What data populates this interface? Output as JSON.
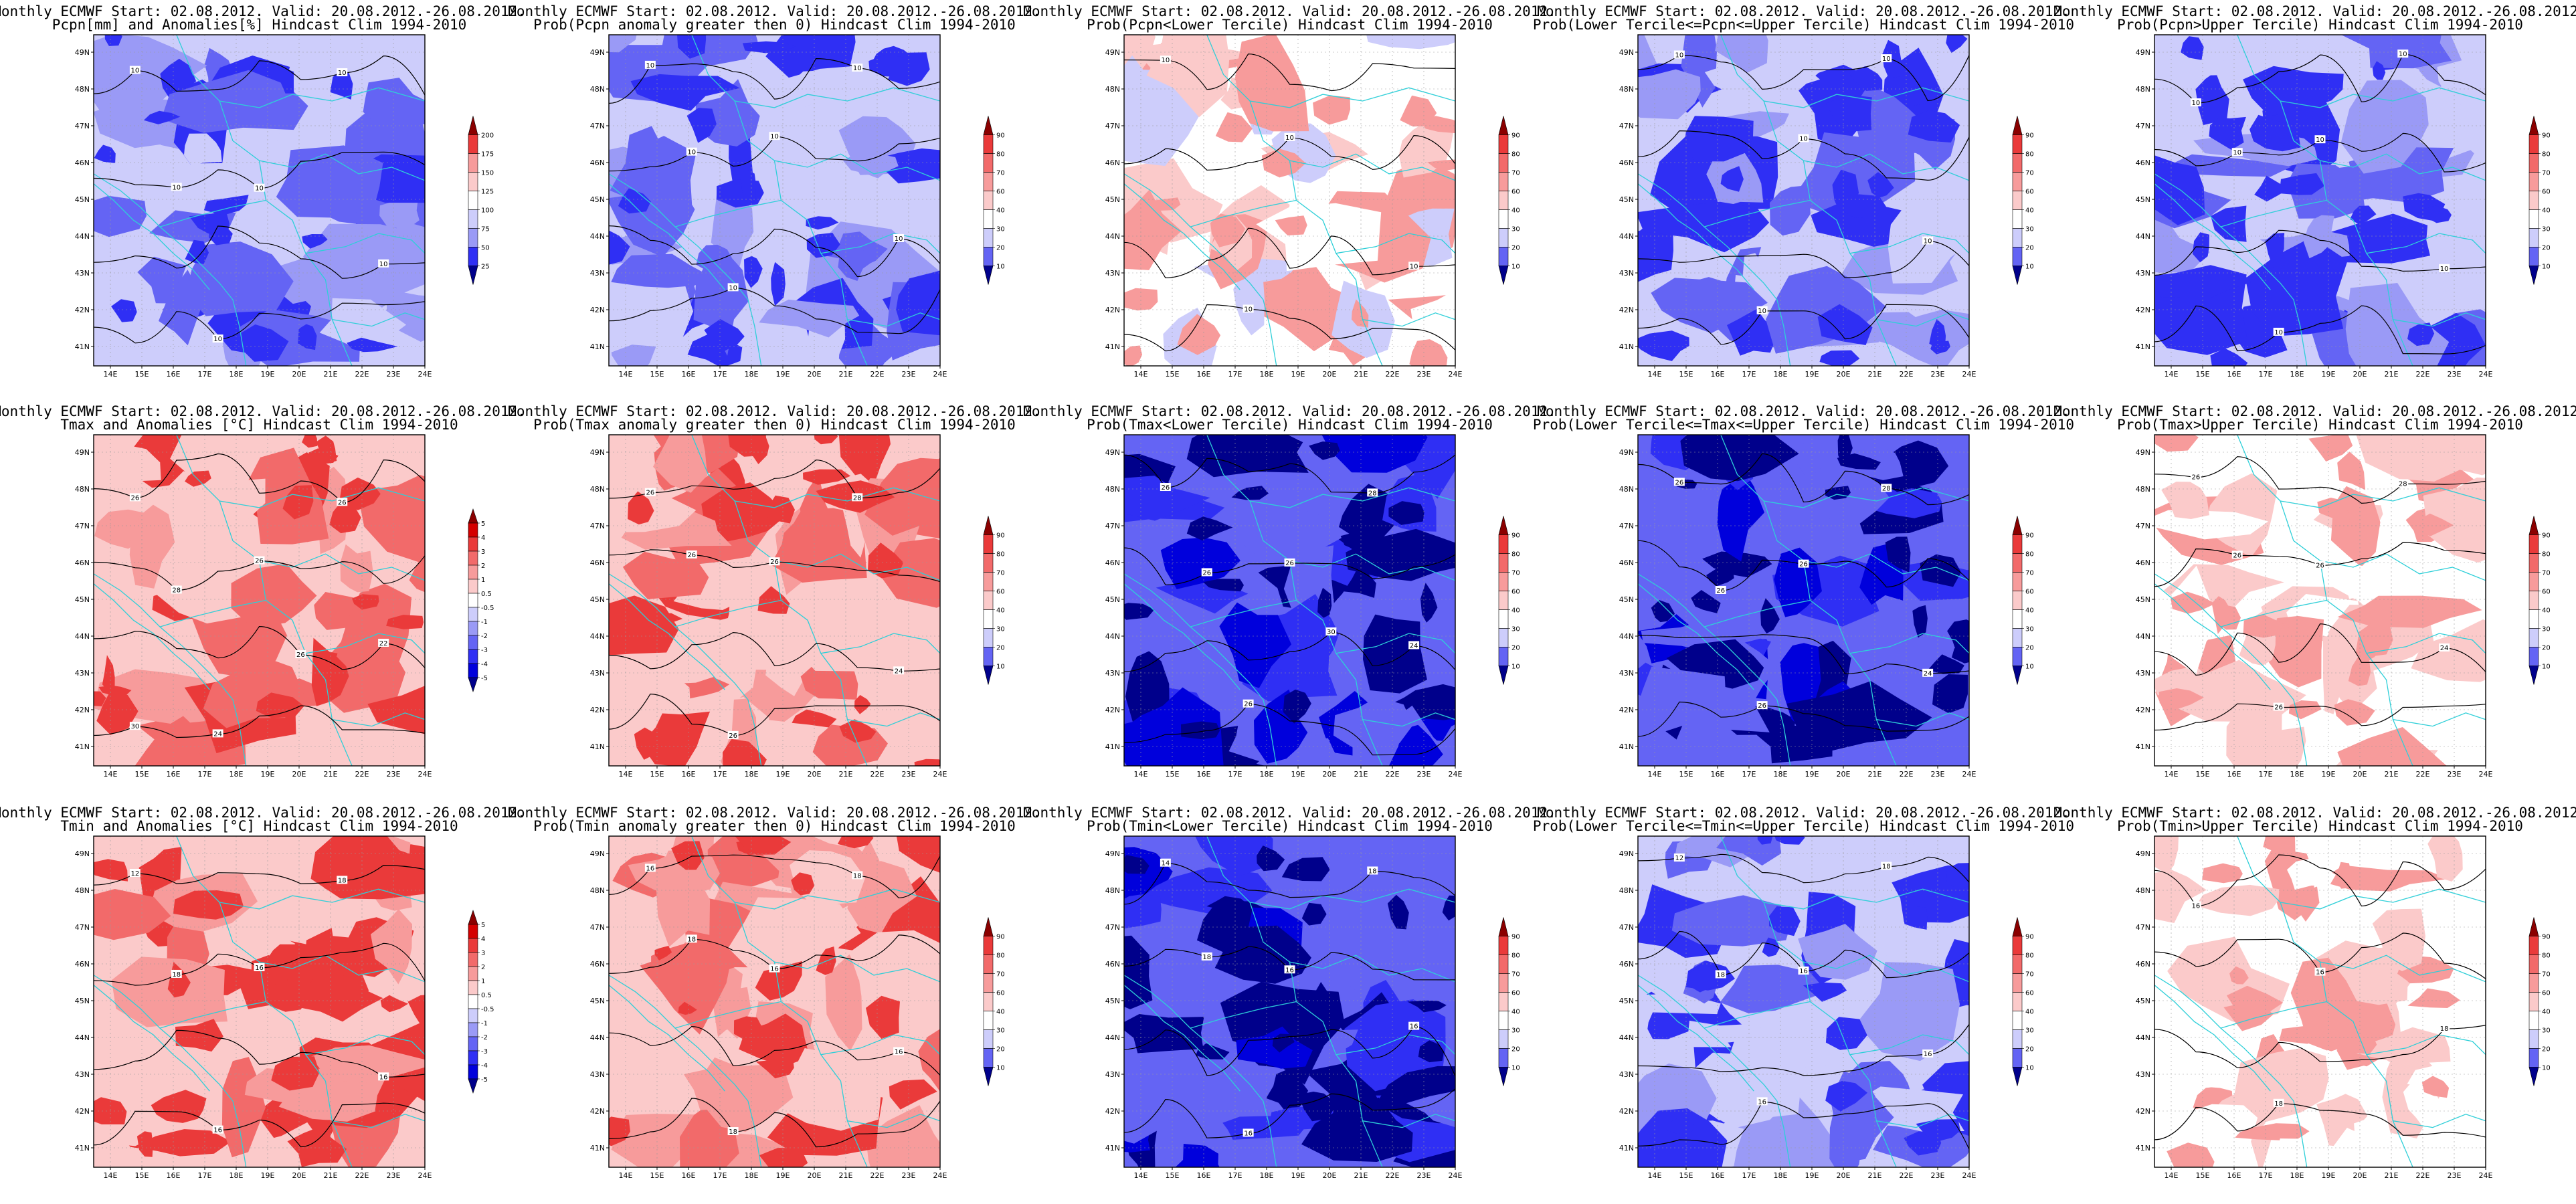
{
  "header_prefix": "Monthly ECMWF Start: 02.08.2012. Valid: 20.08.2012.-26.08.2012.",
  "lon_ticks": [
    "14E",
    "15E",
    "16E",
    "17E",
    "18E",
    "19E",
    "20E",
    "21E",
    "22E",
    "23E",
    "24E"
  ],
  "lat_ticks": [
    "49N",
    "48N",
    "47N",
    "46N",
    "45N",
    "44N",
    "43N",
    "42N",
    "41N"
  ],
  "colors": {
    "levels_blue": [
      "#00008b",
      "#0000dc",
      "#2f2ff4",
      "#6464f4",
      "#9a9af6",
      "#cdcdfb"
    ],
    "levels_red": [
      "#fbcaca",
      "#f79b9b",
      "#f26a6a",
      "#ea3a3a",
      "#d40000",
      "#8b0000"
    ],
    "neutral": "#ffffff",
    "coast": "#2ecfd8",
    "contour": "#000000"
  },
  "panels": [
    {
      "id": "pcpn-anom",
      "title": "Pcpn[mm] and Anomalies[%] Hindcast Clim 1994-2010",
      "legend": [
        "200",
        "175",
        "150",
        "125",
        "100",
        "75",
        "50",
        "25"
      ],
      "kind": "blue",
      "labels": [
        "10",
        "10",
        "10",
        "10",
        "10",
        "10"
      ]
    },
    {
      "id": "pcpn-prob-pos",
      "title": "Prob(Pcpn anomaly greater then 0) Hindcast Clim 1994-2010",
      "legend": [
        "90",
        "80",
        "70",
        "60",
        "40",
        "30",
        "20",
        "10"
      ],
      "kind": "blue",
      "labels": [
        "10",
        "10",
        "10",
        "10",
        "10",
        "10"
      ]
    },
    {
      "id": "pcpn-lower",
      "title": "Prob(Pcpn<Lower Tercile) Hindcast Clim 1994-2010",
      "legend": [
        "90",
        "80",
        "70",
        "60",
        "40",
        "30",
        "20",
        "10"
      ],
      "kind": "white",
      "labels": [
        "10",
        "10",
        "10",
        "10"
      ]
    },
    {
      "id": "pcpn-mid",
      "title": "Prob(Lower Tercile<=Pcpn<=Upper Tercile) Hindcast Clim 1994-2010",
      "legend": [
        "90",
        "80",
        "70",
        "60",
        "40",
        "30",
        "20",
        "10"
      ],
      "kind": "blue",
      "labels": [
        "10",
        "10",
        "10",
        "10",
        "10"
      ]
    },
    {
      "id": "pcpn-upper",
      "title": "Prob(Pcpn>Upper Tercile) Hindcast Clim 1994-2010",
      "legend": [
        "90",
        "80",
        "70",
        "60",
        "40",
        "30",
        "20",
        "10"
      ],
      "kind": "blue",
      "labels": [
        "10",
        "10",
        "10",
        "10",
        "10",
        "10"
      ]
    },
    {
      "id": "tmax-anom",
      "title": "Tmax and Anomalies [°C] Hindcast Clim 1994-2010",
      "legend": [
        "5",
        "4",
        "3",
        "2",
        "1",
        "0.5",
        "-0.5",
        "-1",
        "-2",
        "-3",
        "-4",
        "-5"
      ],
      "kind": "red",
      "labels": [
        "26",
        "26",
        "22",
        "24",
        "26",
        "28",
        "26",
        "30"
      ]
    },
    {
      "id": "tmax-prob-pos",
      "title": "Prob(Tmax anomaly greater then 0) Hindcast Clim 1994-2010",
      "legend": [
        "90",
        "80",
        "70",
        "60",
        "40",
        "30",
        "20",
        "10"
      ],
      "kind": "red",
      "labels": [
        "26",
        "26",
        "24",
        "26",
        "28",
        "26"
      ]
    },
    {
      "id": "tmax-lower",
      "title": "Prob(Tmax<Lower Tercile) Hindcast Clim 1994-2010",
      "legend": [
        "90",
        "80",
        "70",
        "60",
        "40",
        "30",
        "20",
        "10"
      ],
      "kind": "deepblue",
      "labels": [
        "26",
        "26",
        "24",
        "26",
        "28",
        "26",
        "30"
      ]
    },
    {
      "id": "tmax-mid",
      "title": "Prob(Lower Tercile<=Tmax<=Upper Tercile) Hindcast Clim 1994-2010",
      "legend": [
        "90",
        "80",
        "70",
        "60",
        "40",
        "30",
        "20",
        "10"
      ],
      "kind": "deepblue",
      "labels": [
        "26",
        "26",
        "24",
        "26",
        "28",
        "26"
      ]
    },
    {
      "id": "tmax-upper",
      "title": "Prob(Tmax>Upper Tercile) Hindcast Clim 1994-2010",
      "legend": [
        "90",
        "80",
        "70",
        "60",
        "40",
        "30",
        "20",
        "10"
      ],
      "kind": "lightred",
      "labels": [
        "26",
        "26",
        "24",
        "26",
        "28",
        "26"
      ]
    },
    {
      "id": "tmin-anom",
      "title": "Tmin and Anomalies [°C] Hindcast Clim 1994-2010",
      "legend": [
        "5",
        "4",
        "3",
        "2",
        "1",
        "0.5",
        "-0.5",
        "-1",
        "-2",
        "-3",
        "-4",
        "-5"
      ],
      "kind": "red",
      "labels": [
        "12",
        "16",
        "16",
        "16",
        "18",
        "18"
      ]
    },
    {
      "id": "tmin-prob-pos",
      "title": "Prob(Tmin anomaly greater then 0) Hindcast Clim 1994-2010",
      "legend": [
        "90",
        "80",
        "70",
        "60",
        "40",
        "30",
        "20",
        "10"
      ],
      "kind": "red",
      "labels": [
        "16",
        "16",
        "16",
        "18",
        "18",
        "18"
      ]
    },
    {
      "id": "tmin-lower",
      "title": "Prob(Tmin<Lower Tercile) Hindcast Clim 1994-2010",
      "legend": [
        "90",
        "80",
        "70",
        "60",
        "40",
        "30",
        "20",
        "10"
      ],
      "kind": "deepblue",
      "labels": [
        "14",
        "16",
        "16",
        "16",
        "18",
        "18"
      ]
    },
    {
      "id": "tmin-mid",
      "title": "Prob(Lower Tercile<=Tmin<=Upper Tercile) Hindcast Clim 1994-2010",
      "legend": [
        "90",
        "80",
        "70",
        "60",
        "40",
        "30",
        "20",
        "10"
      ],
      "kind": "blue",
      "labels": [
        "12",
        "16",
        "16",
        "16",
        "18",
        "18"
      ]
    },
    {
      "id": "tmin-upper",
      "title": "Prob(Tmin>Upper Tercile) Hindcast Clim 1994-2010",
      "legend": [
        "90",
        "80",
        "70",
        "60",
        "40",
        "30",
        "20",
        "10"
      ],
      "kind": "lightred",
      "labels": [
        "16",
        "16",
        "18",
        "18"
      ]
    }
  ]
}
